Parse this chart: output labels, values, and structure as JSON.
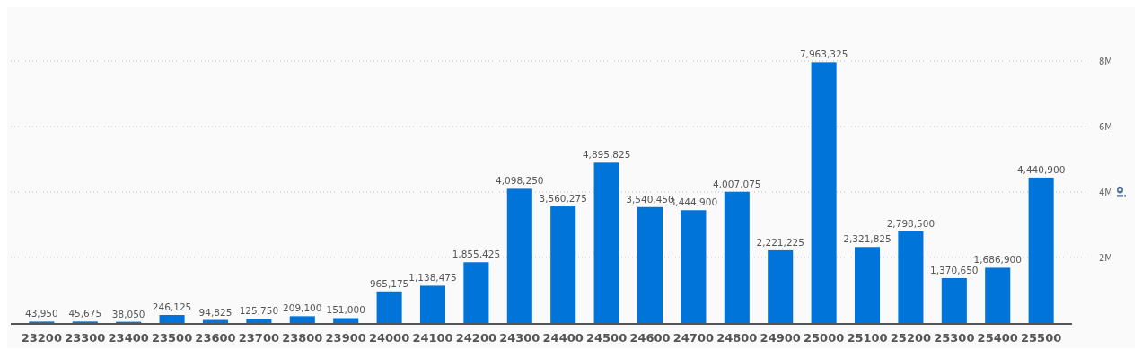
{
  "chart_data": {
    "type": "bar",
    "ylabel": "oi",
    "categories": [
      "23200",
      "23300",
      "23400",
      "23500",
      "23600",
      "23700",
      "23800",
      "23900",
      "24000",
      "24100",
      "24200",
      "24300",
      "24400",
      "24500",
      "24600",
      "24700",
      "24800",
      "24900",
      "25000",
      "25100",
      "25200",
      "25300",
      "25400",
      "25500"
    ],
    "series": [
      {
        "color": "#0074d9",
        "values": [
          43950,
          45675,
          38050,
          246125,
          94825,
          125750,
          209100,
          151000,
          965175,
          1138475,
          1855425,
          4098250,
          3560275,
          4895825,
          3540450,
          3444900,
          4007075,
          2221225,
          7963325,
          2321825,
          2798500,
          1370650,
          1686900,
          4440900
        ]
      }
    ],
    "value_labels": [
      "43,950",
      "45,675",
      "38,050",
      "246,125",
      "94,825",
      "125,750",
      "209,100",
      "151,000",
      "965,175",
      "1,138,475",
      "1,855,425",
      "4,098,250",
      "3,560,275",
      "4,895,825",
      "3,540,450",
      "3,444,900",
      "4,007,075",
      "2,221,225",
      "7,963,325",
      "2,321,825",
      "2,798,500",
      "1,370,650",
      "1,686,900",
      "4,440,900"
    ],
    "ylim": [
      0,
      8000000
    ],
    "yticks": [
      {
        "value": 2000000,
        "label": "2M"
      },
      {
        "value": 4000000,
        "label": "4M"
      },
      {
        "value": 6000000,
        "label": "6M"
      },
      {
        "value": 8000000,
        "label": "8M"
      }
    ],
    "grid": "y"
  }
}
